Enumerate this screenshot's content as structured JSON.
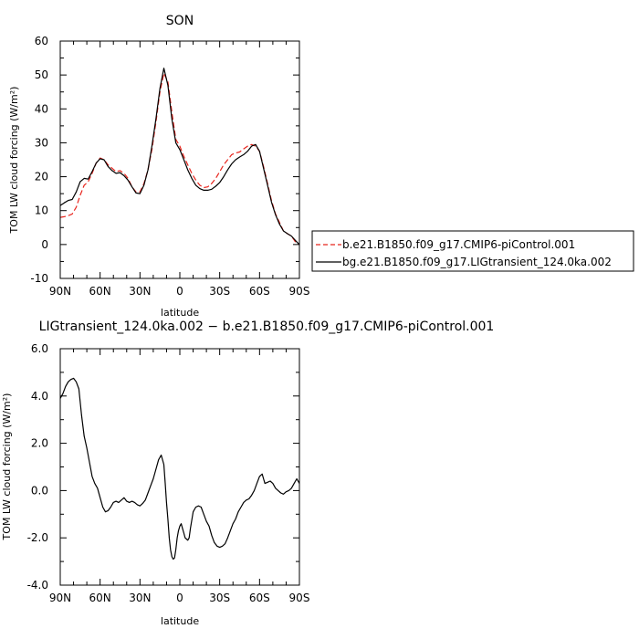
{
  "chart_data": [
    {
      "type": "line",
      "title": "SON",
      "xlabel": "latitude",
      "ylabel": "TOM LW cloud forcing (W/m²)",
      "xlim": [
        90,
        -90
      ],
      "ylim": [
        -10,
        60
      ],
      "x_ticks": [
        90,
        60,
        30,
        0,
        -30,
        -60,
        -90
      ],
      "x_tick_labels": [
        "90N",
        "60N",
        "30N",
        "0",
        "30S",
        "60S",
        "90S"
      ],
      "y_ticks": [
        -10,
        0,
        10,
        20,
        30,
        40,
        50,
        60
      ],
      "y_tick_labels": [
        "-10",
        "0",
        "10",
        "20",
        "30",
        "40",
        "50",
        "60"
      ],
      "legend_position": "right",
      "series": [
        {
          "name": "b.e21.B1850.f09_g17.CMIP6-piControl.001",
          "color": "#e8241c",
          "dash": "dashed",
          "x": [
            90,
            87,
            84,
            81,
            78,
            75,
            72,
            69,
            66,
            63,
            60,
            57,
            54,
            51,
            48,
            45,
            42,
            39,
            36,
            33,
            30,
            27,
            24,
            21,
            18,
            15,
            12,
            9,
            6,
            3,
            0,
            -3,
            -6,
            -9,
            -12,
            -15,
            -18,
            -21,
            -24,
            -27,
            -30,
            -33,
            -36,
            -39,
            -42,
            -45,
            -48,
            -51,
            -54,
            -57,
            -60,
            -63,
            -66,
            -69,
            -72,
            -75,
            -78,
            -81,
            -84,
            -87,
            -90
          ],
          "y": [
            8,
            8.2,
            8.5,
            9,
            11,
            14.5,
            17.5,
            18.5,
            21,
            24,
            25.5,
            25,
            23.5,
            22.5,
            21.5,
            21.8,
            21,
            19.5,
            17,
            15.5,
            15.5,
            18,
            22,
            28,
            36,
            45,
            50.5,
            48,
            39,
            31,
            29,
            26,
            23.5,
            21,
            19,
            17.5,
            16.8,
            17,
            18,
            19.5,
            21.5,
            23.5,
            25,
            26.5,
            27,
            27.3,
            28.2,
            29,
            29.5,
            29,
            27.5,
            23,
            18,
            13,
            9,
            6.5,
            4,
            3.2,
            2.5,
            0.8,
            0
          ]
        },
        {
          "name": "bg.e21.B1850.f09_g17.LIGtransient_124.0ka.002",
          "color": "#000000",
          "dash": "solid",
          "x": [
            90,
            87,
            84,
            81,
            78,
            75,
            72,
            69,
            66,
            63,
            60,
            57,
            54,
            51,
            48,
            45,
            42,
            39,
            36,
            33,
            30,
            27,
            24,
            21,
            18,
            15,
            12,
            9,
            6,
            3,
            0,
            -3,
            -6,
            -9,
            -12,
            -15,
            -18,
            -21,
            -24,
            -27,
            -30,
            -33,
            -36,
            -39,
            -42,
            -45,
            -48,
            -51,
            -54,
            -57,
            -60,
            -63,
            -66,
            -69,
            -72,
            -75,
            -78,
            -81,
            -84,
            -87,
            -90
          ],
          "y": [
            11.5,
            12.3,
            13,
            13.3,
            15.5,
            18.5,
            19.5,
            19.3,
            21.5,
            24,
            25.3,
            25,
            23,
            21.8,
            21,
            21.2,
            20.3,
            19,
            17,
            15.2,
            15,
            17.5,
            22,
            29,
            37,
            46,
            52,
            47,
            37,
            30,
            28,
            25,
            22,
            19.5,
            17.5,
            16.5,
            16,
            16,
            16.3,
            17.2,
            18.3,
            20,
            22,
            23.8,
            25,
            25.8,
            26.5,
            27.5,
            29,
            29.5,
            27.5,
            22.5,
            17.5,
            12.5,
            8.8,
            6,
            4,
            3.2,
            2.5,
            1.2,
            0
          ]
        }
      ]
    },
    {
      "type": "line",
      "title": "LIGtransient_124.0ka.002 − b.e21.B1850.f09_g17.CMIP6-piControl.001",
      "xlabel": "latitude",
      "ylabel": "TOM LW cloud forcing (W/m²)",
      "xlim": [
        90,
        -90
      ],
      "ylim": [
        -4,
        6
      ],
      "x_ticks": [
        90,
        60,
        30,
        0,
        -30,
        -60,
        -90
      ],
      "x_tick_labels": [
        "90N",
        "60N",
        "30N",
        "0",
        "30S",
        "60S",
        "90S"
      ],
      "y_ticks": [
        -4,
        -2,
        0,
        2,
        4,
        6
      ],
      "y_tick_labels": [
        "-4.0",
        "-2.0",
        "0.0",
        "2.0",
        "4.0",
        "6.0"
      ],
      "series": [
        {
          "color": "#000000",
          "dash": "solid",
          "x": [
            90,
            88,
            86,
            84,
            82,
            80,
            78,
            76,
            74,
            72,
            70,
            68,
            66,
            64,
            62,
            60,
            58,
            56,
            54,
            52,
            50,
            48,
            46,
            44,
            42,
            40,
            38,
            36,
            34,
            32,
            30,
            28,
            26,
            24,
            22,
            20,
            18,
            16,
            14,
            12,
            11,
            10,
            9,
            8,
            7,
            6,
            5,
            4,
            3,
            2,
            1,
            0,
            -1,
            -2,
            -3,
            -4,
            -5,
            -6,
            -7,
            -8,
            -10,
            -12,
            -14,
            -16,
            -18,
            -20,
            -22,
            -24,
            -26,
            -28,
            -30,
            -32,
            -34,
            -36,
            -38,
            -40,
            -42,
            -44,
            -46,
            -48,
            -50,
            -52,
            -54,
            -56,
            -58,
            -60,
            -62,
            -63,
            -64,
            -66,
            -68,
            -70,
            -72,
            -74,
            -76,
            -78,
            -80,
            -82,
            -84,
            -86,
            -88,
            -90
          ],
          "y": [
            3.9,
            4.1,
            4.4,
            4.6,
            4.7,
            4.75,
            4.6,
            4.3,
            3.2,
            2.3,
            1.8,
            1.2,
            0.6,
            0.3,
            0.1,
            -0.3,
            -0.7,
            -0.9,
            -0.85,
            -0.7,
            -0.5,
            -0.45,
            -0.5,
            -0.4,
            -0.3,
            -0.45,
            -0.5,
            -0.45,
            -0.5,
            -0.6,
            -0.65,
            -0.55,
            -0.4,
            -0.1,
            0.2,
            0.5,
            0.9,
            1.3,
            1.5,
            1.1,
            0.3,
            -0.5,
            -1.2,
            -2.0,
            -2.5,
            -2.8,
            -2.9,
            -2.85,
            -2.5,
            -2.0,
            -1.7,
            -1.5,
            -1.4,
            -1.6,
            -1.8,
            -2.0,
            -2.05,
            -2.1,
            -2.0,
            -1.6,
            -0.9,
            -0.7,
            -0.65,
            -0.7,
            -1.0,
            -1.3,
            -1.5,
            -1.9,
            -2.2,
            -2.35,
            -2.4,
            -2.35,
            -2.25,
            -2.0,
            -1.7,
            -1.4,
            -1.2,
            -0.9,
            -0.7,
            -0.5,
            -0.4,
            -0.35,
            -0.2,
            0.0,
            0.3,
            0.6,
            0.7,
            0.5,
            0.3,
            0.35,
            0.4,
            0.3,
            0.1,
            0.0,
            -0.1,
            -0.15,
            -0.05,
            0.0,
            0.1,
            0.3,
            0.5,
            0.3
          ]
        }
      ]
    }
  ]
}
